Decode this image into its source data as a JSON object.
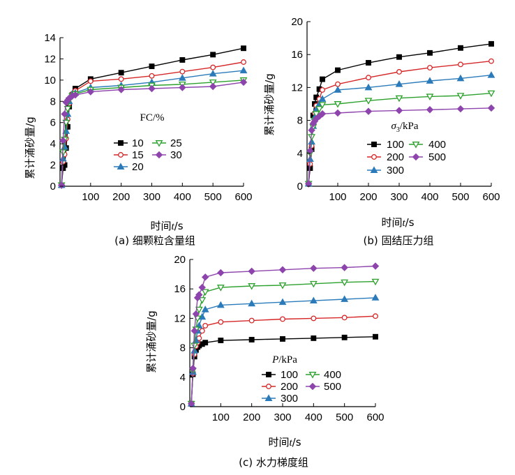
{
  "figure": {
    "xlabel_prefix": "时间",
    "xlabel_var": "t",
    "xlabel_unit": "/s",
    "ylabel": "累计涌砂量/g"
  },
  "chart_data": [
    {
      "type": "line",
      "caption": "(a) 细颗粒含量组",
      "legend_title": "FC/%",
      "legend_title_var": "",
      "legend_title_sub": "",
      "xlim": [
        0,
        600
      ],
      "ylim": [
        0,
        14
      ],
      "xticks": [
        100,
        200,
        300,
        400,
        500,
        600
      ],
      "yticks": [
        0,
        2,
        4,
        6,
        8,
        10,
        12,
        14
      ],
      "x": [
        5,
        10,
        15,
        20,
        25,
        30,
        40,
        50,
        100,
        200,
        300,
        400,
        500,
        600
      ],
      "series": [
        {
          "name": "10",
          "marker": "square",
          "color": "#000000",
          "values": [
            0.1,
            1.7,
            2.0,
            3.6,
            5.6,
            7.5,
            8.6,
            9.2,
            10.1,
            10.7,
            11.3,
            11.9,
            12.4,
            13.0
          ]
        },
        {
          "name": "15",
          "marker": "circle-open",
          "color": "#d62728",
          "values": [
            0.1,
            2.3,
            3.0,
            4.5,
            6.3,
            7.8,
            8.7,
            9.0,
            9.9,
            10.1,
            10.4,
            10.8,
            11.2,
            11.7
          ]
        },
        {
          "name": "20",
          "marker": "triangle-up",
          "color": "#2b7bba",
          "values": [
            0.1,
            2.6,
            3.7,
            5.2,
            6.8,
            8.0,
            8.7,
            8.8,
            9.3,
            9.5,
            9.8,
            10.2,
            10.6,
            10.9
          ]
        },
        {
          "name": "25",
          "marker": "triangle-down-open",
          "color": "#2ca02c",
          "values": [
            0.1,
            3.2,
            4.4,
            6.0,
            7.3,
            8.1,
            8.5,
            8.7,
            9.1,
            9.3,
            9.5,
            9.6,
            9.8,
            10.0
          ]
        },
        {
          "name": "30",
          "marker": "diamond",
          "color": "#8e44ad",
          "values": [
            0.1,
            4.3,
            6.8,
            7.9,
            8.1,
            8.3,
            8.5,
            8.6,
            8.9,
            9.1,
            9.2,
            9.3,
            9.4,
            9.8
          ]
        }
      ]
    },
    {
      "type": "line",
      "caption": "(b) 固结压力组",
      "legend_title": "/kPa",
      "legend_title_var": "σ",
      "legend_title_sub": "3",
      "xlim": [
        0,
        600
      ],
      "ylim": [
        0,
        20
      ],
      "xticks": [
        100,
        200,
        300,
        400,
        500,
        600
      ],
      "yticks": [
        0,
        4,
        8,
        12,
        16,
        20
      ],
      "x": [
        5,
        10,
        15,
        20,
        25,
        30,
        40,
        50,
        100,
        200,
        300,
        400,
        500,
        600
      ],
      "series": [
        {
          "name": "100",
          "marker": "square",
          "color": "#000000",
          "values": [
            0.3,
            2.2,
            4.5,
            8.6,
            10.0,
            10.8,
            11.8,
            13.0,
            14.1,
            15.0,
            15.7,
            16.2,
            16.8,
            17.3
          ]
        },
        {
          "name": "200",
          "marker": "circle-open",
          "color": "#d62728",
          "values": [
            0.3,
            2.7,
            4.9,
            7.6,
            8.9,
            9.8,
            10.6,
            11.7,
            12.4,
            13.2,
            13.9,
            14.4,
            14.8,
            15.2
          ]
        },
        {
          "name": "300",
          "marker": "triangle-up",
          "color": "#2b7bba",
          "values": [
            0.3,
            3.3,
            5.4,
            7.3,
            8.4,
            9.3,
            10.0,
            10.6,
            11.7,
            12.0,
            12.4,
            12.8,
            13.1,
            13.5
          ]
        },
        {
          "name": "400",
          "marker": "triangle-down-open",
          "color": "#2ca02c",
          "values": [
            0.3,
            4.0,
            6.0,
            7.2,
            8.0,
            8.8,
            9.4,
            9.9,
            10.0,
            10.4,
            10.7,
            10.9,
            11.0,
            11.3
          ]
        },
        {
          "name": "500",
          "marker": "diamond",
          "color": "#8e44ad",
          "values": [
            0.3,
            4.3,
            6.8,
            7.6,
            7.9,
            8.2,
            8.5,
            8.8,
            8.9,
            9.1,
            9.2,
            9.3,
            9.4,
            9.5
          ]
        }
      ]
    },
    {
      "type": "line",
      "caption": "(c) 水力梯度组",
      "legend_title": "/kPa",
      "legend_title_var": "P",
      "legend_title_sub": "",
      "xlim": [
        0,
        600
      ],
      "ylim": [
        0,
        20
      ],
      "xticks": [
        100,
        200,
        300,
        400,
        500,
        600
      ],
      "yticks": [
        0,
        4,
        8,
        12,
        16,
        20
      ],
      "x": [
        5,
        10,
        15,
        20,
        25,
        30,
        40,
        50,
        100,
        200,
        300,
        400,
        500,
        600
      ],
      "series": [
        {
          "name": "100",
          "marker": "square",
          "color": "#000000",
          "values": [
            0.4,
            4.4,
            6.8,
            7.7,
            8.1,
            8.3,
            8.5,
            8.7,
            9.0,
            9.1,
            9.2,
            9.3,
            9.4,
            9.5
          ]
        },
        {
          "name": "200",
          "marker": "circle-open",
          "color": "#d62728",
          "values": [
            0.4,
            4.5,
            7.1,
            8.2,
            8.7,
            9.3,
            10.3,
            11.0,
            11.5,
            11.7,
            11.9,
            12.0,
            12.1,
            12.3
          ]
        },
        {
          "name": "300",
          "marker": "triangle-up",
          "color": "#2b7bba",
          "values": [
            0.4,
            4.7,
            7.6,
            9.0,
            10.3,
            11.0,
            12.2,
            13.2,
            13.8,
            14.0,
            14.2,
            14.4,
            14.6,
            14.8
          ]
        },
        {
          "name": "400",
          "marker": "triangle-down-open",
          "color": "#2ca02c",
          "values": [
            0.4,
            4.9,
            8.3,
            10.5,
            12.0,
            13.2,
            14.5,
            15.6,
            16.2,
            16.4,
            16.5,
            16.7,
            16.9,
            17.0
          ]
        },
        {
          "name": "500",
          "marker": "diamond",
          "color": "#8e44ad",
          "values": [
            0.4,
            5.2,
            10.3,
            12.6,
            14.8,
            15.2,
            16.2,
            17.6,
            18.2,
            18.4,
            18.6,
            18.8,
            18.9,
            19.1
          ]
        }
      ]
    }
  ]
}
